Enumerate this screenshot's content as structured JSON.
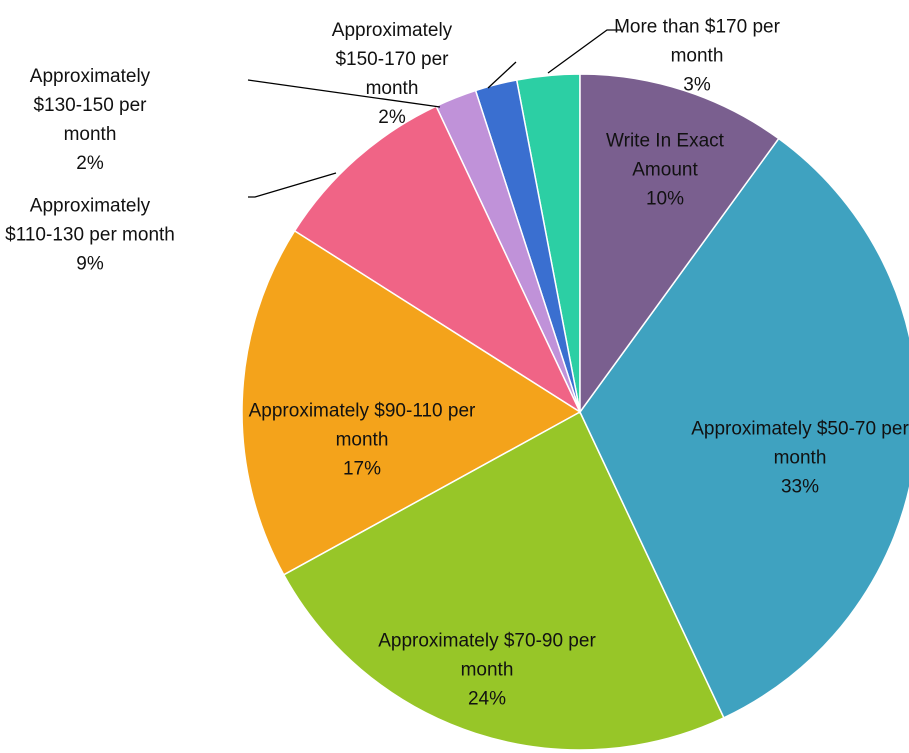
{
  "chart_data": {
    "type": "pie",
    "categories": [
      "Write In Exact Amount",
      "Approximately $50-70 per month",
      "Approximately $70-90 per month",
      "Approximately $90-110 per month",
      "Approximately $110-130 per month",
      "Approximately $130-150 per month",
      "Approximately $150-170 per month",
      "More than $170 per month"
    ],
    "values": [
      10,
      33,
      24,
      17,
      9,
      2,
      2,
      3
    ],
    "value_labels": [
      "10%",
      "33%",
      "24%",
      "17%",
      "9%",
      "2%",
      "2%",
      "3%"
    ],
    "colors": [
      "#7a5f8f",
      "#3fa2c0",
      "#97c628",
      "#f4a31b",
      "#f06486",
      "#c092d9",
      "#3a6fd0",
      "#2ccfa4"
    ]
  }
}
